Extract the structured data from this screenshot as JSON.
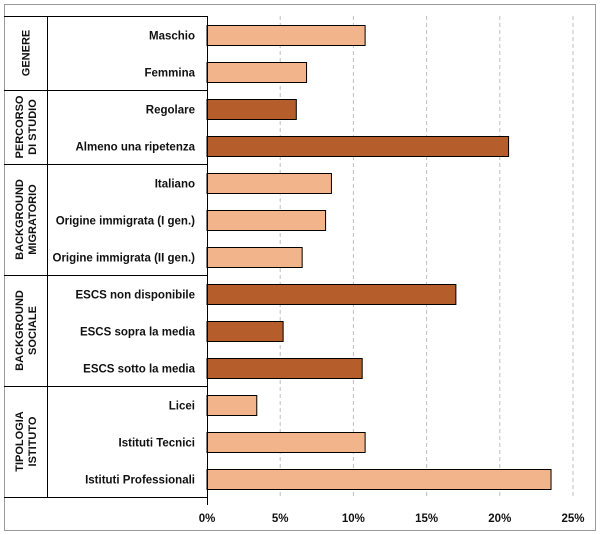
{
  "chart_data": {
    "type": "bar",
    "orientation": "horizontal",
    "title": "",
    "xlabel": "",
    "ylabel": "",
    "xlim": [
      0,
      25
    ],
    "x_ticks": [
      "0%",
      "5%",
      "10%",
      "15%",
      "20%",
      "25%"
    ],
    "grid": "vertical dashed",
    "colors": {
      "light": "#F1B48B",
      "dark": "#B55E2B",
      "border": "#000000",
      "grid": "#BFBFBF"
    },
    "groups": [
      {
        "label_lines": [
          "GENERE"
        ],
        "bars": [
          {
            "category": "Maschio",
            "value": 10.8,
            "color": "light"
          },
          {
            "category": "Femmina",
            "value": 6.8,
            "color": "light"
          }
        ]
      },
      {
        "label_lines": [
          "PERCORSO",
          "DI STUDIO"
        ],
        "bars": [
          {
            "category": "Regolare",
            "value": 6.1,
            "color": "dark"
          },
          {
            "category": "Almeno una ripetenza",
            "value": 20.6,
            "color": "dark"
          }
        ]
      },
      {
        "label_lines": [
          "BACKGROUND",
          "MIGRATORIO"
        ],
        "bars": [
          {
            "category": "Italiano",
            "value": 8.5,
            "color": "light"
          },
          {
            "category": "Origine immigrata (I gen.)",
            "value": 8.1,
            "color": "light"
          },
          {
            "category": "Origine immigrata (II gen.)",
            "value": 6.5,
            "color": "light"
          }
        ]
      },
      {
        "label_lines": [
          "BACKGROUND",
          "SOCIALE"
        ],
        "bars": [
          {
            "category": "ESCS non disponibile",
            "value": 17.0,
            "color": "dark"
          },
          {
            "category": "ESCS sopra la media",
            "value": 5.2,
            "color": "dark"
          },
          {
            "category": "ESCS sotto la media",
            "value": 10.6,
            "color": "dark"
          }
        ]
      },
      {
        "label_lines": [
          "TIPOLOGIA",
          "ISTITUTO"
        ],
        "bars": [
          {
            "category": "Licei",
            "value": 3.4,
            "color": "light"
          },
          {
            "category": "Istituti Tecnici",
            "value": 10.8,
            "color": "light"
          },
          {
            "category": "Istituti Professionali",
            "value": 23.5,
            "color": "light"
          }
        ]
      }
    ]
  }
}
